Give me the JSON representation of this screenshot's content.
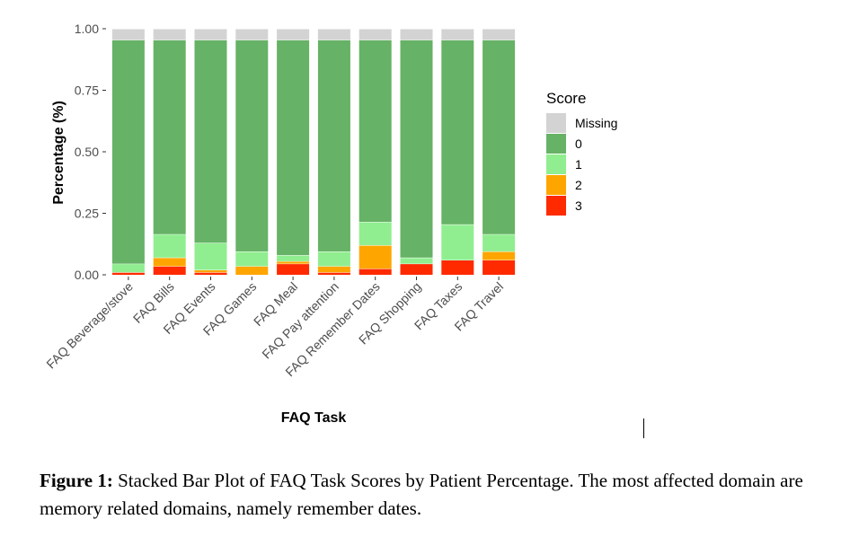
{
  "chart_data": {
    "type": "bar",
    "stacked": true,
    "xlabel": "FAQ Task",
    "ylabel": "Percentage (%)",
    "ylim": [
      0,
      1
    ],
    "yticks": [
      "0.00",
      "0.25",
      "0.50",
      "0.75",
      "1.00"
    ],
    "categories": [
      "FAQ Beverage/stove",
      "FAQ Bills",
      "FAQ Events",
      "FAQ Games",
      "FAQ Meal",
      "FAQ Pay attention",
      "FAQ Remember Dates",
      "FAQ Shopping",
      "FAQ Taxes",
      "FAQ Travel"
    ],
    "legend_title": "Score",
    "legend_position": "right",
    "series": [
      {
        "name": "3",
        "color": "#ff2a00",
        "values": [
          0.01,
          0.035,
          0.01,
          0.0,
          0.045,
          0.01,
          0.025,
          0.045,
          0.06,
          0.06
        ]
      },
      {
        "name": "2",
        "color": "#ffa500",
        "values": [
          0.0,
          0.035,
          0.01,
          0.035,
          0.01,
          0.025,
          0.095,
          0.0,
          0.0,
          0.035
        ]
      },
      {
        "name": "1",
        "color": "#90ee90",
        "values": [
          0.035,
          0.095,
          0.11,
          0.06,
          0.025,
          0.06,
          0.095,
          0.025,
          0.145,
          0.07
        ]
      },
      {
        "name": "0",
        "color": "#66b266",
        "values": [
          0.91,
          0.79,
          0.825,
          0.86,
          0.875,
          0.86,
          0.74,
          0.885,
          0.75,
          0.79
        ]
      },
      {
        "name": "Missing",
        "color": "#d3d3d3",
        "values": [
          0.045,
          0.045,
          0.045,
          0.045,
          0.045,
          0.045,
          0.045,
          0.045,
          0.045,
          0.045
        ]
      }
    ],
    "legend_order": [
      "Missing",
      "0",
      "1",
      "2",
      "3"
    ]
  },
  "caption": {
    "label": "Figure 1:",
    "text": " Stacked Bar Plot of FAQ Task Scores by Patient Percentage. The most affected domain are memory related domains, namely remember dates."
  }
}
